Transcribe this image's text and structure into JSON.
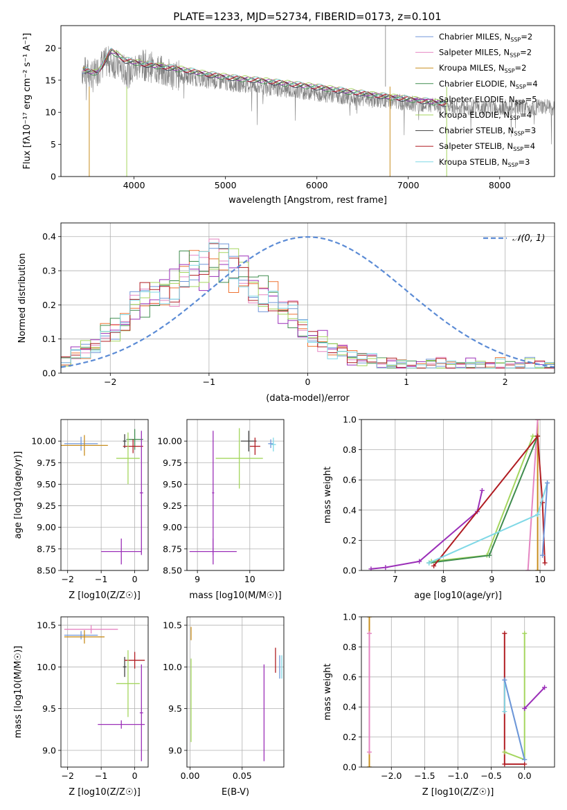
{
  "figure": {
    "title": "PLATE=1233, MJD=52734, FIBERID=0173, z=0.101"
  },
  "colors": {
    "spectrum": "#808080",
    "gaussian": "#5b8bd5",
    "models": [
      "#6f95d8",
      "#e585c2",
      "#c88d1e",
      "#3f8c4e",
      "#9b2fb8",
      "#a4d65e",
      "#404040",
      "#b01c22",
      "#7fd8e6"
    ],
    "hist_series": [
      "#6f95d8",
      "#e585c2",
      "#ee7230",
      "#3f8c4e",
      "#9b2fb8",
      "#a4d65e",
      "#b01c22",
      "#7fd8e6"
    ]
  },
  "chart_data": [
    {
      "id": "spectrum",
      "type": "line",
      "title": "PLATE=1233, MJD=52734, FIBERID=0173, z=0.101",
      "xlabel": "wavelength [Angstrom, rest frame]",
      "ylabel": "Flux [fλ10⁻¹⁷ erg cm⁻² s⁻¹ A⁻¹]",
      "xlim": [
        3200,
        8600
      ],
      "ylim": [
        0,
        23.5
      ],
      "xticks": [
        "4000",
        "5000",
        "6000",
        "7000",
        "8000"
      ],
      "yticks": [
        "0",
        "5",
        "10",
        "15",
        "20"
      ],
      "legend_position": "top-right",
      "legend": [
        "Chabrier MILES, N_SSP=2",
        "Salpeter MILES, N_SSP=2",
        "Kroupa MILES, N_SSP=2",
        "Chabrier ELODIE, N_SSP=4",
        "Salpeter ELODIE, N_SSP=5",
        "Kroupa ELODIE, N_SSP=4",
        "Chabrier STELIB, N_SSP=3",
        "Salpeter STELIB, N_SSP=4",
        "Kroupa STELIB, N_SSP=3"
      ],
      "observed_trend": {
        "x": [
          3450,
          3550,
          3650,
          3750,
          3850,
          3950,
          4050,
          4150,
          4250,
          4350,
          4450,
          4600,
          4800,
          5000,
          5200,
          5400,
          5600,
          5800,
          6000,
          6200,
          6400,
          6600,
          6800,
          7000,
          7200,
          7400
        ],
        "y": [
          16.5,
          15.5,
          17.5,
          18.0,
          17.0,
          16.0,
          17.5,
          17.2,
          16.8,
          16.0,
          15.8,
          15.5,
          15.0,
          14.6,
          14.3,
          14.0,
          13.6,
          13.3,
          13.0,
          12.6,
          12.3,
          12.0,
          11.7,
          11.5,
          11.2,
          10.8
        ]
      },
      "model_trend": {
        "x": [
          3450,
          3600,
          3750,
          3900,
          4100,
          4300,
          4500,
          4800,
          5100,
          5400,
          5700,
          6000,
          6300,
          6600,
          6900,
          7200,
          7420
        ],
        "y": [
          16.4,
          16.0,
          19.5,
          18.0,
          17.4,
          17.0,
          16.6,
          15.8,
          15.2,
          14.8,
          14.3,
          13.8,
          13.2,
          12.6,
          12.1,
          11.6,
          11.2
        ]
      }
    },
    {
      "id": "residuals",
      "type": "histogram",
      "xlabel": "(data-model)/error",
      "ylabel": "Normed distribution",
      "xlim": [
        -2.5,
        2.5
      ],
      "ylim": [
        0,
        0.44
      ],
      "xticks": [
        "−2",
        "−1",
        "0",
        "1",
        "2"
      ],
      "yticks": [
        "0.0",
        "0.1",
        "0.2",
        "0.3",
        "0.4"
      ],
      "legend_position": "top-right",
      "legend": [
        "𝒩(0, 1)"
      ],
      "bin_width": 0.1,
      "base_profile": [
        0.04,
        0.05,
        0.07,
        0.06,
        0.08,
        0.1,
        0.09,
        0.11,
        0.14,
        0.12,
        0.15,
        0.18,
        0.17,
        0.2,
        0.23,
        0.21,
        0.25,
        0.27,
        0.26,
        0.24,
        0.28,
        0.31,
        0.29,
        0.33,
        0.35,
        0.34,
        0.36,
        0.37,
        0.35,
        0.38,
        0.39,
        0.36,
        0.38,
        0.37,
        0.35,
        0.33,
        0.34,
        0.31,
        0.29,
        0.3,
        0.27,
        0.25,
        0.26,
        0.22,
        0.21,
        0.19,
        0.2,
        0.17,
        0.15,
        0.16,
        0.13,
        0.12,
        0.1,
        0.11,
        0.09,
        0.08,
        0.07,
        0.08,
        0.06,
        0.05,
        0.06,
        0.05,
        0.04,
        0.05,
        0.04,
        0.03,
        0.04,
        0.03,
        0.04,
        0.03,
        0.03,
        0.02,
        0.03,
        0.02,
        0.03,
        0.03,
        0.02,
        0.03,
        0.02,
        0.02,
        0.03,
        0.02,
        0.02,
        0.03,
        0.02,
        0.02,
        0.03,
        0.02,
        0.02,
        0.03,
        0.02,
        0.02,
        0.03,
        0.02,
        0.02,
        0.03,
        0.02,
        0.02,
        0.03,
        0.02
      ]
    },
    {
      "id": "age_vs_Z",
      "type": "errorbar",
      "xlabel": "Z [log10(Z/Z☉)]",
      "ylabel": "age  [log10(age/yr)]",
      "xlim": [
        -2.2,
        0.4
      ],
      "ylim": [
        8.5,
        10.25
      ],
      "xticks": [
        "−2",
        "−1",
        "0"
      ],
      "yticks": [
        "8.50",
        "8.75",
        "9.00",
        "9.25",
        "9.50",
        "9.75",
        "10.00"
      ],
      "points": [
        {
          "series": 0,
          "x": -1.6,
          "xerr": 0.5,
          "y": 9.97,
          "yerr": 0.08
        },
        {
          "series": 2,
          "x": -1.5,
          "xerr": 0.7,
          "y": 9.95,
          "yerr": 0.12
        },
        {
          "series": 6,
          "x": -0.3,
          "xerr": 0.05,
          "y": 10.0,
          "yerr": 0.08
        },
        {
          "series": 3,
          "x": 0.0,
          "xerr": 0.25,
          "y": 10.02,
          "yerr": 0.12
        },
        {
          "series": 7,
          "x": -0.05,
          "xerr": 0.3,
          "y": 9.94,
          "yerr": 0.08
        },
        {
          "series": 5,
          "x": -0.2,
          "xerr": 0.35,
          "y": 9.8,
          "yerr": 0.3
        },
        {
          "series": 4,
          "x": -0.4,
          "xerr": 0.6,
          "y": 8.72,
          "yerr": 0.15
        },
        {
          "series": 4,
          "x": 0.2,
          "xerr": 0.05,
          "y": 9.4,
          "yerr": 0.72
        }
      ]
    },
    {
      "id": "age_vs_mass",
      "type": "errorbar",
      "xlabel": "mass [log10(M/M☉)]",
      "ylabel": "",
      "xlim": [
        8.8,
        10.65
      ],
      "ylim": [
        8.5,
        10.25
      ],
      "xticks": [
        "9",
        "10"
      ],
      "yticks": [
        "8.50",
        "8.75",
        "9.00",
        "9.25",
        "9.50",
        "9.75",
        "10.00"
      ],
      "points": [
        {
          "series": 5,
          "x": 9.8,
          "xerr": 0.45,
          "y": 9.8,
          "yerr": 0.35
        },
        {
          "series": 4,
          "x": 9.3,
          "xerr": 0.45,
          "y": 8.72,
          "yerr": 0.15
        },
        {
          "series": 4,
          "x": 9.3,
          "xerr": 0.02,
          "y": 9.4,
          "yerr": 0.72
        },
        {
          "series": 6,
          "x": 9.98,
          "xerr": 0.15,
          "y": 10.0,
          "yerr": 0.12
        },
        {
          "series": 7,
          "x": 10.1,
          "xerr": 0.1,
          "y": 9.94,
          "yerr": 0.1
        },
        {
          "series": 0,
          "x": 10.4,
          "xerr": 0.05,
          "y": 9.97,
          "yerr": 0.05
        },
        {
          "series": 8,
          "x": 10.45,
          "xerr": 0.05,
          "y": 9.96,
          "yerr": 0.08
        }
      ]
    },
    {
      "id": "mass_weight_vs_age",
      "type": "line",
      "xlabel": "age  [log10(age/yr)]",
      "ylabel": "mass weight",
      "xlim": [
        6.3,
        10.3
      ],
      "ylim": [
        0,
        1.0
      ],
      "xticks": [
        "7",
        "8",
        "9",
        "10"
      ],
      "yticks": [
        "0.0",
        "0.2",
        "0.4",
        "0.6",
        "0.8",
        "1.0"
      ],
      "series": [
        {
          "color_index": 2,
          "x": [
            9.95,
            9.95
          ],
          "y": [
            0.0,
            1.0
          ]
        },
        {
          "color_index": 1,
          "x": [
            9.75,
            9.95
          ],
          "y": [
            0.0,
            1.0
          ]
        },
        {
          "color_index": 4,
          "x": [
            6.5,
            6.8,
            7.5,
            8.7,
            8.8
          ],
          "y": [
            0.01,
            0.02,
            0.06,
            0.39,
            0.53
          ]
        },
        {
          "color_index": 5,
          "x": [
            7.75,
            8.9,
            9.85,
            9.95
          ],
          "y": [
            0.06,
            0.1,
            0.89,
            0.89
          ]
        },
        {
          "color_index": 3,
          "x": [
            7.7,
            8.95,
            9.95
          ],
          "y": [
            0.05,
            0.1,
            0.89
          ]
        },
        {
          "color_index": 7,
          "x": [
            7.8,
            9.95,
            10.05,
            10.1
          ],
          "y": [
            0.03,
            0.89,
            0.45,
            0.05
          ]
        },
        {
          "color_index": 8,
          "x": [
            7.7,
            9.95,
            10.15
          ],
          "y": [
            0.05,
            0.37,
            0.58
          ]
        },
        {
          "color_index": 0,
          "x": [
            10.05,
            10.15
          ],
          "y": [
            0.1,
            0.58
          ]
        }
      ]
    },
    {
      "id": "mass_vs_Z",
      "type": "errorbar",
      "xlabel": "Z [log10(Z/Z☉)]",
      "ylabel": "mass [log10(M/M☉)]",
      "xlim": [
        -2.2,
        0.4
      ],
      "ylim": [
        8.8,
        10.6
      ],
      "xticks": [
        "−2",
        "−1",
        "0"
      ],
      "yticks": [
        "9.0",
        "9.5",
        "10.0",
        "10.5"
      ],
      "points": [
        {
          "series": 1,
          "x": -1.3,
          "xerr": 0.8,
          "y": 10.45,
          "yerr": 0.05
        },
        {
          "series": 0,
          "x": -1.6,
          "xerr": 0.5,
          "y": 10.38,
          "yerr": 0.05
        },
        {
          "series": 2,
          "x": -1.5,
          "xerr": 0.6,
          "y": 10.36,
          "yerr": 0.08
        },
        {
          "series": 6,
          "x": -0.3,
          "xerr": 0.05,
          "y": 10.0,
          "yerr": 0.12
        },
        {
          "series": 7,
          "x": 0.0,
          "xerr": 0.3,
          "y": 10.08,
          "yerr": 0.1
        },
        {
          "series": 5,
          "x": -0.2,
          "xerr": 0.35,
          "y": 9.8,
          "yerr": 0.4
        },
        {
          "series": 4,
          "x": -0.4,
          "xerr": 0.7,
          "y": 9.31,
          "yerr": 0.05
        },
        {
          "series": 4,
          "x": 0.2,
          "xerr": 0.05,
          "y": 9.45,
          "yerr": 0.58
        }
      ]
    },
    {
      "id": "mass_vs_ebv",
      "type": "errorbar",
      "xlabel": "E(B-V)",
      "ylabel": "",
      "xlim": [
        -0.003,
        0.09
      ],
      "ylim": [
        8.8,
        10.6
      ],
      "xticks": [
        "0.00",
        "0.05"
      ],
      "yticks": [
        "9.0",
        "9.5",
        "10.0",
        "10.5"
      ],
      "points": [
        {
          "series": 5,
          "x": 0.001,
          "xerr": 0.0,
          "y": 9.6,
          "yerr": 0.5
        },
        {
          "series": 2,
          "x": 0.001,
          "xerr": 0.0,
          "y": 10.4,
          "yerr": 0.08
        },
        {
          "series": 4,
          "x": 0.071,
          "xerr": 0.0,
          "y": 9.45,
          "yerr": 0.58
        },
        {
          "series": 7,
          "x": 0.082,
          "xerr": 0.0,
          "y": 10.08,
          "yerr": 0.15
        },
        {
          "series": 0,
          "x": 0.086,
          "xerr": 0.0,
          "y": 10.0,
          "yerr": 0.14
        },
        {
          "series": 8,
          "x": 0.088,
          "xerr": 0.0,
          "y": 10.0,
          "yerr": 0.14
        }
      ]
    },
    {
      "id": "mass_weight_vs_Z",
      "type": "line",
      "xlabel": "Z [log10(Z/Z☉)]",
      "ylabel": "mass weight",
      "xlim": [
        -2.45,
        0.45
      ],
      "ylim": [
        0,
        1.0
      ],
      "xticks": [
        "−2.0",
        "−1.5",
        "−1.0",
        "−0.5",
        "0.0"
      ],
      "yticks": [
        "0.0",
        "0.2",
        "0.4",
        "0.6",
        "0.8",
        "1.0"
      ],
      "series": [
        {
          "color_index": 2,
          "x": [
            -2.33,
            -2.33
          ],
          "y": [
            0.0,
            1.0
          ]
        },
        {
          "color_index": 1,
          "x": [
            -2.33,
            -2.33
          ],
          "y": [
            0.1,
            0.89
          ]
        },
        {
          "color_index": 7,
          "x": [
            -0.3,
            -0.3,
            0.0
          ],
          "y": [
            0.89,
            0.02,
            0.02
          ]
        },
        {
          "color_index": 5,
          "x": [
            -0.3,
            0.0,
            0.0
          ],
          "y": [
            0.1,
            0.05,
            0.89
          ]
        },
        {
          "color_index": 4,
          "x": [
            0.0,
            0.3
          ],
          "y": [
            0.39,
            0.53
          ]
        },
        {
          "color_index": 8,
          "x": [
            -0.3,
            -0.3,
            0.0
          ],
          "y": [
            0.37,
            0.58,
            0.05
          ]
        },
        {
          "color_index": 0,
          "x": [
            -0.3,
            0.0
          ],
          "y": [
            0.58,
            0.05
          ]
        }
      ]
    }
  ]
}
